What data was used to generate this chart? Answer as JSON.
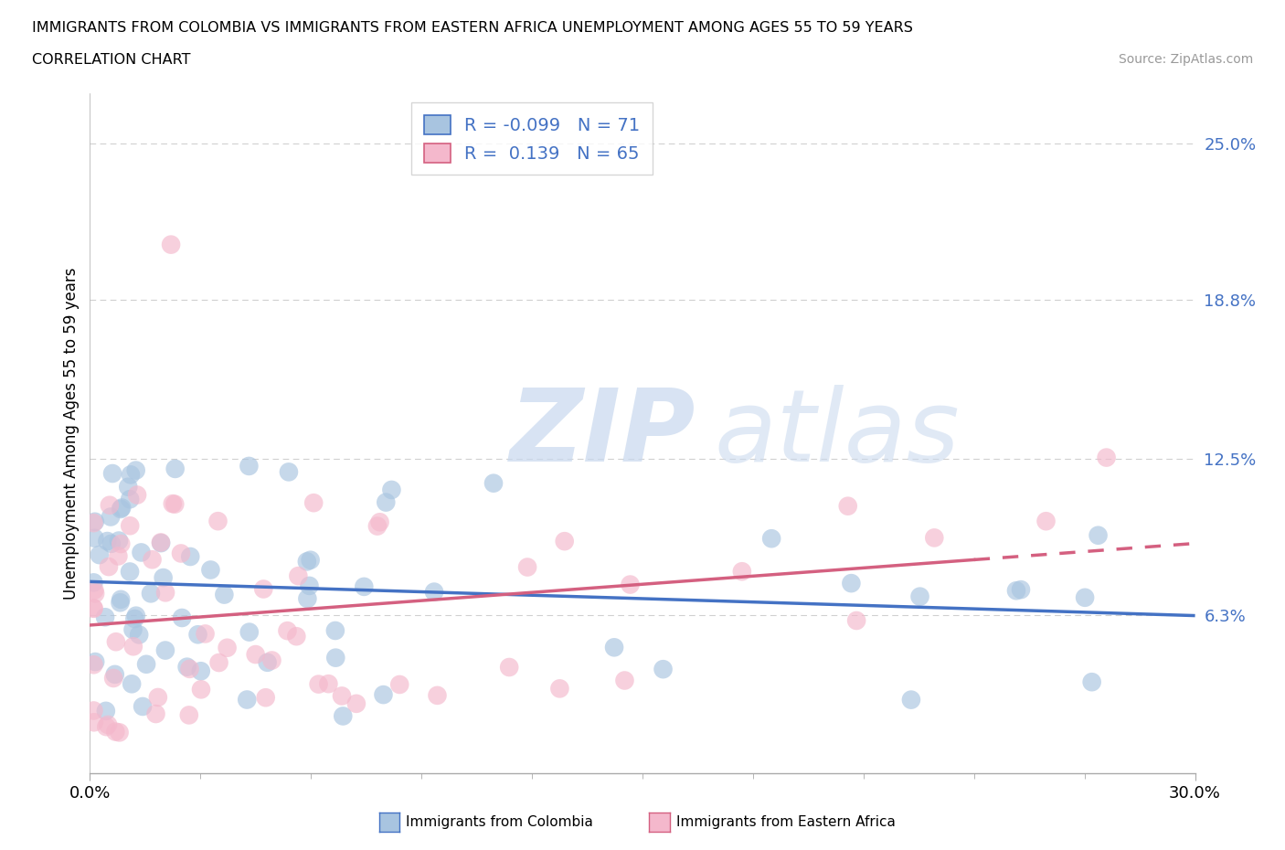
{
  "title_line1": "IMMIGRANTS FROM COLOMBIA VS IMMIGRANTS FROM EASTERN AFRICA UNEMPLOYMENT AMONG AGES 55 TO 59 YEARS",
  "title_line2": "CORRELATION CHART",
  "source_text": "Source: ZipAtlas.com",
  "ylabel": "Unemployment Among Ages 55 to 59 years",
  "xlim": [
    0.0,
    0.3
  ],
  "ylim": [
    0.0,
    0.27
  ],
  "ytick_labels": [
    "6.3%",
    "12.5%",
    "18.8%",
    "25.0%"
  ],
  "ytick_values": [
    0.063,
    0.125,
    0.188,
    0.25
  ],
  "colombia_color": "#a8c4e0",
  "colombia_edge": "#5b8ec4",
  "colombia_line_color": "#4472c4",
  "eastern_africa_color": "#f4b8cc",
  "eastern_africa_edge": "#d47090",
  "eastern_africa_line_color": "#d46080",
  "colombia_R": -0.099,
  "colombia_N": 71,
  "eastern_africa_R": 0.139,
  "eastern_africa_N": 65,
  "grid_color": "#d0d0d0",
  "background_color": "#ffffff"
}
